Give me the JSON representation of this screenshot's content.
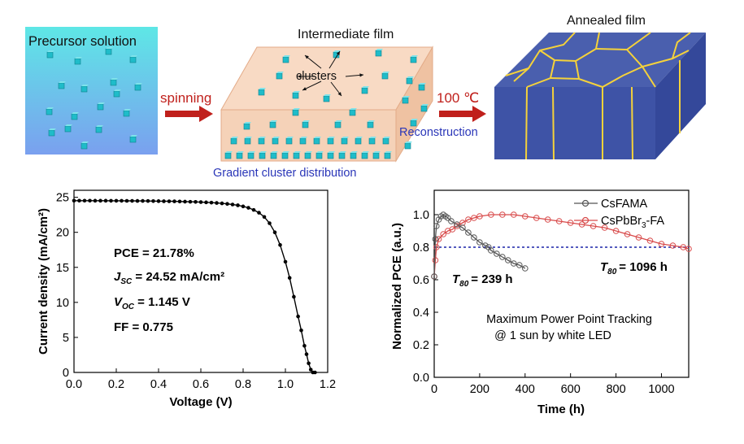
{
  "schematic": {
    "precursor_label": "Precursor solution",
    "spinning_label": "spinning",
    "intermediate_label": "Intermediate film",
    "clusters_label": "clusters",
    "reconstruction_label": "Reconstruction",
    "gradient_label": "Gradient cluster distribution",
    "temp_label": "100 ℃",
    "annealed_label": "Annealed film"
  },
  "colors": {
    "arrow": "#c0201c",
    "cluster": "#1fbcc9",
    "film_face": "#f5d2b8",
    "film_edge": "#e0a888",
    "annealed_top": "#4a5fae",
    "annealed_side": "#34489a",
    "grain": "#f5d23a",
    "label_blue": "#2a36b8",
    "jv_curve": "#000000",
    "mpp_series_1": "#555555",
    "mpp_series_2": "#d84a4a",
    "t80_line": "#1c24a8"
  },
  "jv_chart": {
    "xlabel": "Voltage (V)",
    "ylabel": "Current density (mA/cm²)",
    "annotations": {
      "pce": "PCE = 21.78%",
      "jsc_sym": "J",
      "jsc_sub": "SC",
      "jsc_val": " = 24.52 mA/cm²",
      "voc_sym": "V",
      "voc_sub": "OC",
      "voc_val": " = 1.145 V",
      "ff": "FF = 0.775"
    }
  },
  "mpp_chart": {
    "xlabel": "Time (h)",
    "ylabel": "Normalized PCE (a.u.)",
    "legend": {
      "s1": "CsFAMA",
      "s2_main": "CsPbBr",
      "s2_sub": "3",
      "s2_tail": "-FA"
    },
    "t80_sym": "T",
    "t80_sub": "80",
    "t80_s1": "= 239 h",
    "t80_s2": "= 1096 h",
    "note_line1": "Maximum Power Point Tracking",
    "note_line2": "@ 1 sun by white LED"
  },
  "chart_data": [
    {
      "type": "line",
      "xlabel": "Voltage (V)",
      "ylabel": "Current density (mA/cm²)",
      "xlim": [
        0,
        1.2
      ],
      "ylim": [
        0,
        26
      ],
      "xticks": [
        0.0,
        0.2,
        0.4,
        0.6,
        0.8,
        1.0,
        1.2
      ],
      "yticks": [
        0,
        5,
        10,
        15,
        20,
        25
      ],
      "grid": false,
      "series": [
        {
          "x": [
            0.0,
            0.025,
            0.05,
            0.075,
            0.1,
            0.125,
            0.15,
            0.175,
            0.2,
            0.225,
            0.25,
            0.275,
            0.3,
            0.325,
            0.35,
            0.375,
            0.4,
            0.425,
            0.45,
            0.475,
            0.5,
            0.525,
            0.55,
            0.575,
            0.6,
            0.625,
            0.65,
            0.675,
            0.7,
            0.725,
            0.75,
            0.775,
            0.8,
            0.825,
            0.85,
            0.875,
            0.9,
            0.925,
            0.95,
            0.975,
            1.0,
            1.02,
            1.04,
            1.06,
            1.075,
            1.09,
            1.1,
            1.11,
            1.12,
            1.13,
            1.14
          ],
          "y": [
            24.52,
            24.52,
            24.52,
            24.52,
            24.51,
            24.51,
            24.51,
            24.5,
            24.5,
            24.5,
            24.49,
            24.49,
            24.48,
            24.48,
            24.47,
            24.46,
            24.45,
            24.44,
            24.43,
            24.42,
            24.4,
            24.38,
            24.36,
            24.34,
            24.31,
            24.28,
            24.24,
            24.19,
            24.13,
            24.06,
            23.97,
            23.86,
            23.7,
            23.5,
            23.2,
            22.8,
            22.2,
            21.3,
            20.0,
            18.2,
            15.8,
            13.5,
            10.8,
            8.0,
            6.0,
            3.8,
            2.6,
            1.3,
            0.4,
            0.0,
            0.0
          ]
        }
      ]
    },
    {
      "type": "line",
      "xlabel": "Time (h)",
      "ylabel": "Normalized PCE (a.u.)",
      "xlim": [
        0,
        1120
      ],
      "ylim": [
        0,
        1.15
      ],
      "xticks": [
        0,
        200,
        400,
        600,
        800,
        1000
      ],
      "yticks": [
        0.0,
        0.2,
        0.4,
        0.6,
        0.8,
        1.0
      ],
      "grid": false,
      "legend": "top-right",
      "reference_line": 0.8,
      "series": [
        {
          "name": "CsFAMA",
          "x": [
            0,
            5,
            10,
            20,
            30,
            40,
            50,
            60,
            75,
            100,
            125,
            150,
            175,
            200,
            225,
            239,
            250,
            275,
            300,
            325,
            350,
            375,
            400
          ],
          "y": [
            0.62,
            0.85,
            0.93,
            0.97,
            0.99,
            1.0,
            0.99,
            0.98,
            0.96,
            0.94,
            0.92,
            0.89,
            0.86,
            0.83,
            0.81,
            0.8,
            0.78,
            0.76,
            0.74,
            0.72,
            0.7,
            0.69,
            0.67
          ]
        },
        {
          "name": "CsPbBr₃-FA",
          "x": [
            0,
            5,
            10,
            20,
            40,
            60,
            80,
            100,
            125,
            150,
            175,
            200,
            250,
            300,
            350,
            400,
            450,
            500,
            550,
            600,
            650,
            700,
            750,
            800,
            850,
            900,
            950,
            1000,
            1050,
            1096,
            1120
          ],
          "y": [
            0.62,
            0.72,
            0.8,
            0.85,
            0.88,
            0.9,
            0.91,
            0.93,
            0.95,
            0.97,
            0.98,
            0.99,
            1.0,
            1.0,
            1.0,
            0.99,
            0.98,
            0.97,
            0.96,
            0.95,
            0.94,
            0.93,
            0.92,
            0.9,
            0.88,
            0.86,
            0.84,
            0.82,
            0.81,
            0.8,
            0.79
          ]
        }
      ]
    }
  ]
}
